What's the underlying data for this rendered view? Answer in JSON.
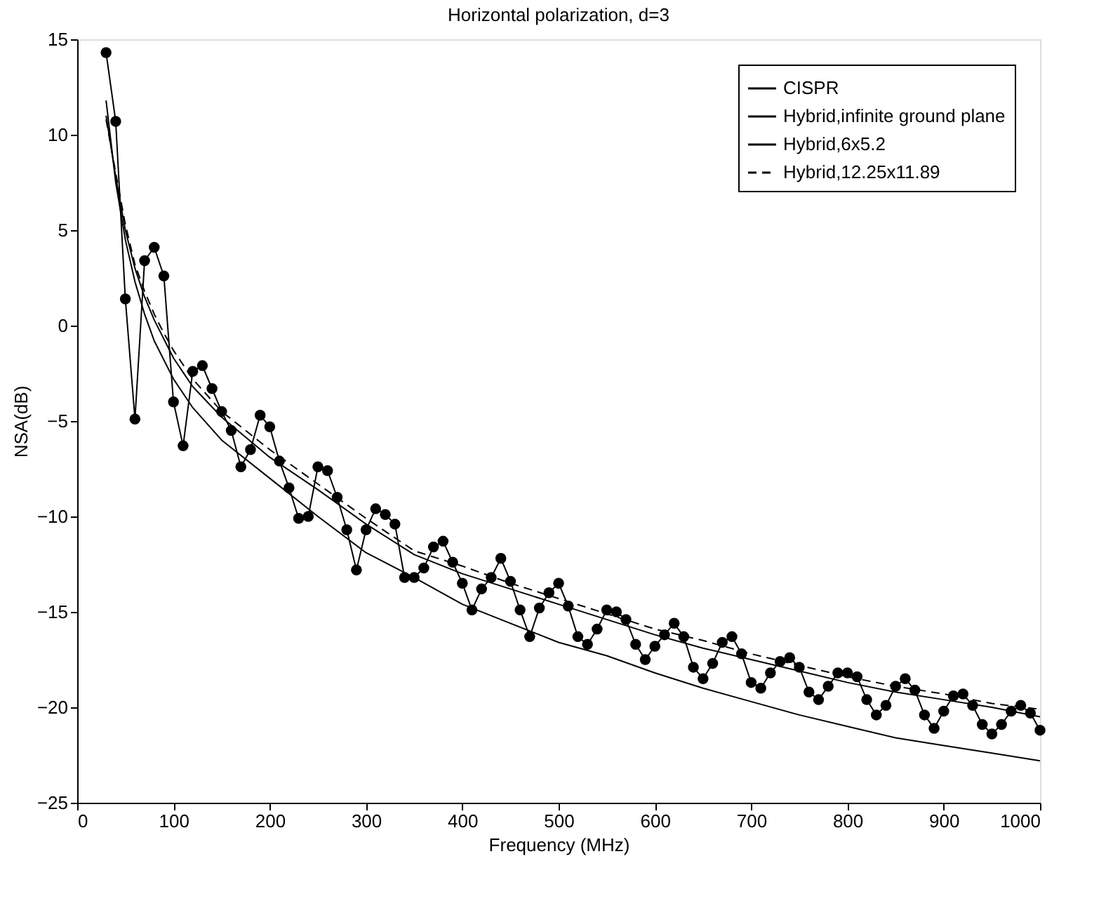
{
  "chart_data": {
    "type": "line",
    "title": "Horizontal polarization, d=3",
    "xlabel": "Frequency (MHz)",
    "ylabel": "NSA(dB)",
    "xlim": [
      0,
      1000
    ],
    "xticks": [
      0,
      100,
      200,
      300,
      400,
      500,
      600,
      700,
      800,
      900,
      1000
    ],
    "ylim": [
      -25,
      15
    ],
    "yticks": [
      -25,
      -20,
      -15,
      -10,
      -5,
      0,
      5,
      10,
      15
    ],
    "grid": false,
    "legend": "top right",
    "series": [
      {
        "name": "CISPR",
        "color": "#000000",
        "line_style": "solid",
        "marker": "none",
        "x": [
          30,
          40,
          50,
          60,
          70,
          80,
          100,
          120,
          150,
          200,
          250,
          300,
          350,
          400,
          450,
          500,
          550,
          600,
          650,
          700,
          750,
          800,
          850,
          900,
          950,
          1000
        ],
        "values": [
          11.8,
          7.5,
          4.5,
          2.3,
          0.6,
          -0.8,
          -2.8,
          -4.3,
          -6.0,
          -8.0,
          -10.0,
          -11.9,
          -13.2,
          -14.6,
          -15.6,
          -16.6,
          -17.3,
          -18.2,
          -19.0,
          -19.7,
          -20.4,
          -21.0,
          -21.6,
          -22.0,
          -22.4,
          -22.8
        ]
      },
      {
        "name": "Hybrid,infinite ground plane",
        "color": "#000000",
        "line_style": "solid",
        "marker": "none",
        "x": [
          30,
          40,
          50,
          60,
          70,
          80,
          100,
          120,
          150,
          200,
          250,
          300,
          350,
          400,
          450,
          500,
          550,
          600,
          650,
          700,
          750,
          800,
          850,
          900,
          950,
          1000
        ],
        "values": [
          11.0,
          7.8,
          5.0,
          3.0,
          1.5,
          0.3,
          -1.7,
          -3.2,
          -4.8,
          -6.9,
          -8.6,
          -10.4,
          -12.0,
          -13.0,
          -13.8,
          -14.6,
          -15.4,
          -16.2,
          -16.9,
          -17.5,
          -18.1,
          -18.7,
          -19.2,
          -19.6,
          -20.0,
          -20.5
        ]
      },
      {
        "name": "Hybrid,6x5.2",
        "color": "#000000",
        "line_style": "solid",
        "marker": "circle",
        "x": [
          30,
          40,
          50,
          60,
          70,
          80,
          90,
          100,
          110,
          120,
          130,
          140,
          150,
          160,
          170,
          180,
          190,
          200,
          210,
          220,
          230,
          240,
          250,
          260,
          270,
          280,
          290,
          300,
          310,
          320,
          330,
          340,
          350,
          360,
          370,
          380,
          390,
          400,
          410,
          420,
          430,
          440,
          450,
          460,
          470,
          480,
          490,
          500,
          510,
          520,
          530,
          540,
          550,
          560,
          570,
          580,
          590,
          600,
          610,
          620,
          630,
          640,
          650,
          660,
          670,
          680,
          690,
          700,
          710,
          720,
          730,
          740,
          750,
          760,
          770,
          780,
          790,
          800,
          810,
          820,
          830,
          840,
          850,
          860,
          870,
          880,
          890,
          900,
          910,
          920,
          930,
          940,
          950,
          960,
          970,
          980,
          990,
          1000
        ],
        "values": [
          14.3,
          10.7,
          1.4,
          -4.9,
          3.4,
          4.1,
          2.6,
          -4.0,
          -6.3,
          -2.4,
          -2.1,
          -3.3,
          -4.5,
          -5.5,
          -7.4,
          -6.5,
          -4.7,
          -5.3,
          -7.1,
          -8.5,
          -10.1,
          -10.0,
          -7.4,
          -7.6,
          -9.0,
          -10.7,
          -12.8,
          -10.7,
          -9.6,
          -9.9,
          -10.4,
          -13.2,
          -13.2,
          -12.7,
          -11.6,
          -11.3,
          -12.4,
          -13.5,
          -14.9,
          -13.8,
          -13.2,
          -12.2,
          -13.4,
          -14.9,
          -16.3,
          -14.8,
          -14.0,
          -13.5,
          -14.7,
          -16.3,
          -16.7,
          -15.9,
          -14.9,
          -15.0,
          -15.4,
          -16.7,
          -17.5,
          -16.8,
          -16.2,
          -15.6,
          -16.3,
          -17.9,
          -18.5,
          -17.7,
          -16.6,
          -16.3,
          -17.2,
          -18.7,
          -19.0,
          -18.2,
          -17.6,
          -17.4,
          -17.9,
          -19.2,
          -19.6,
          -18.9,
          -18.2,
          -18.2,
          -18.4,
          -19.6,
          -20.4,
          -19.9,
          -18.9,
          -18.5,
          -19.1,
          -20.4,
          -21.1,
          -20.2,
          -19.4,
          -19.3,
          -19.9,
          -20.9,
          -21.4,
          -20.9,
          -20.2,
          -19.9,
          -20.3,
          -21.2
        ]
      },
      {
        "name": "Hybrid,12.25x11.89",
        "color": "#000000",
        "line_style": "dashed",
        "marker": "none",
        "x": [
          30,
          40,
          50,
          60,
          70,
          80,
          90,
          100,
          120,
          150,
          200,
          250,
          300,
          350,
          400,
          450,
          500,
          550,
          600,
          650,
          700,
          750,
          800,
          850,
          900,
          950,
          1000
        ],
        "values": [
          10.8,
          8.0,
          5.3,
          3.2,
          1.8,
          0.6,
          -0.4,
          -1.3,
          -2.8,
          -4.5,
          -6.5,
          -8.3,
          -10.1,
          -11.8,
          -12.6,
          -13.5,
          -14.3,
          -15.1,
          -15.9,
          -16.5,
          -17.2,
          -17.8,
          -18.4,
          -18.9,
          -19.3,
          -19.8,
          -20.1
        ]
      }
    ]
  }
}
